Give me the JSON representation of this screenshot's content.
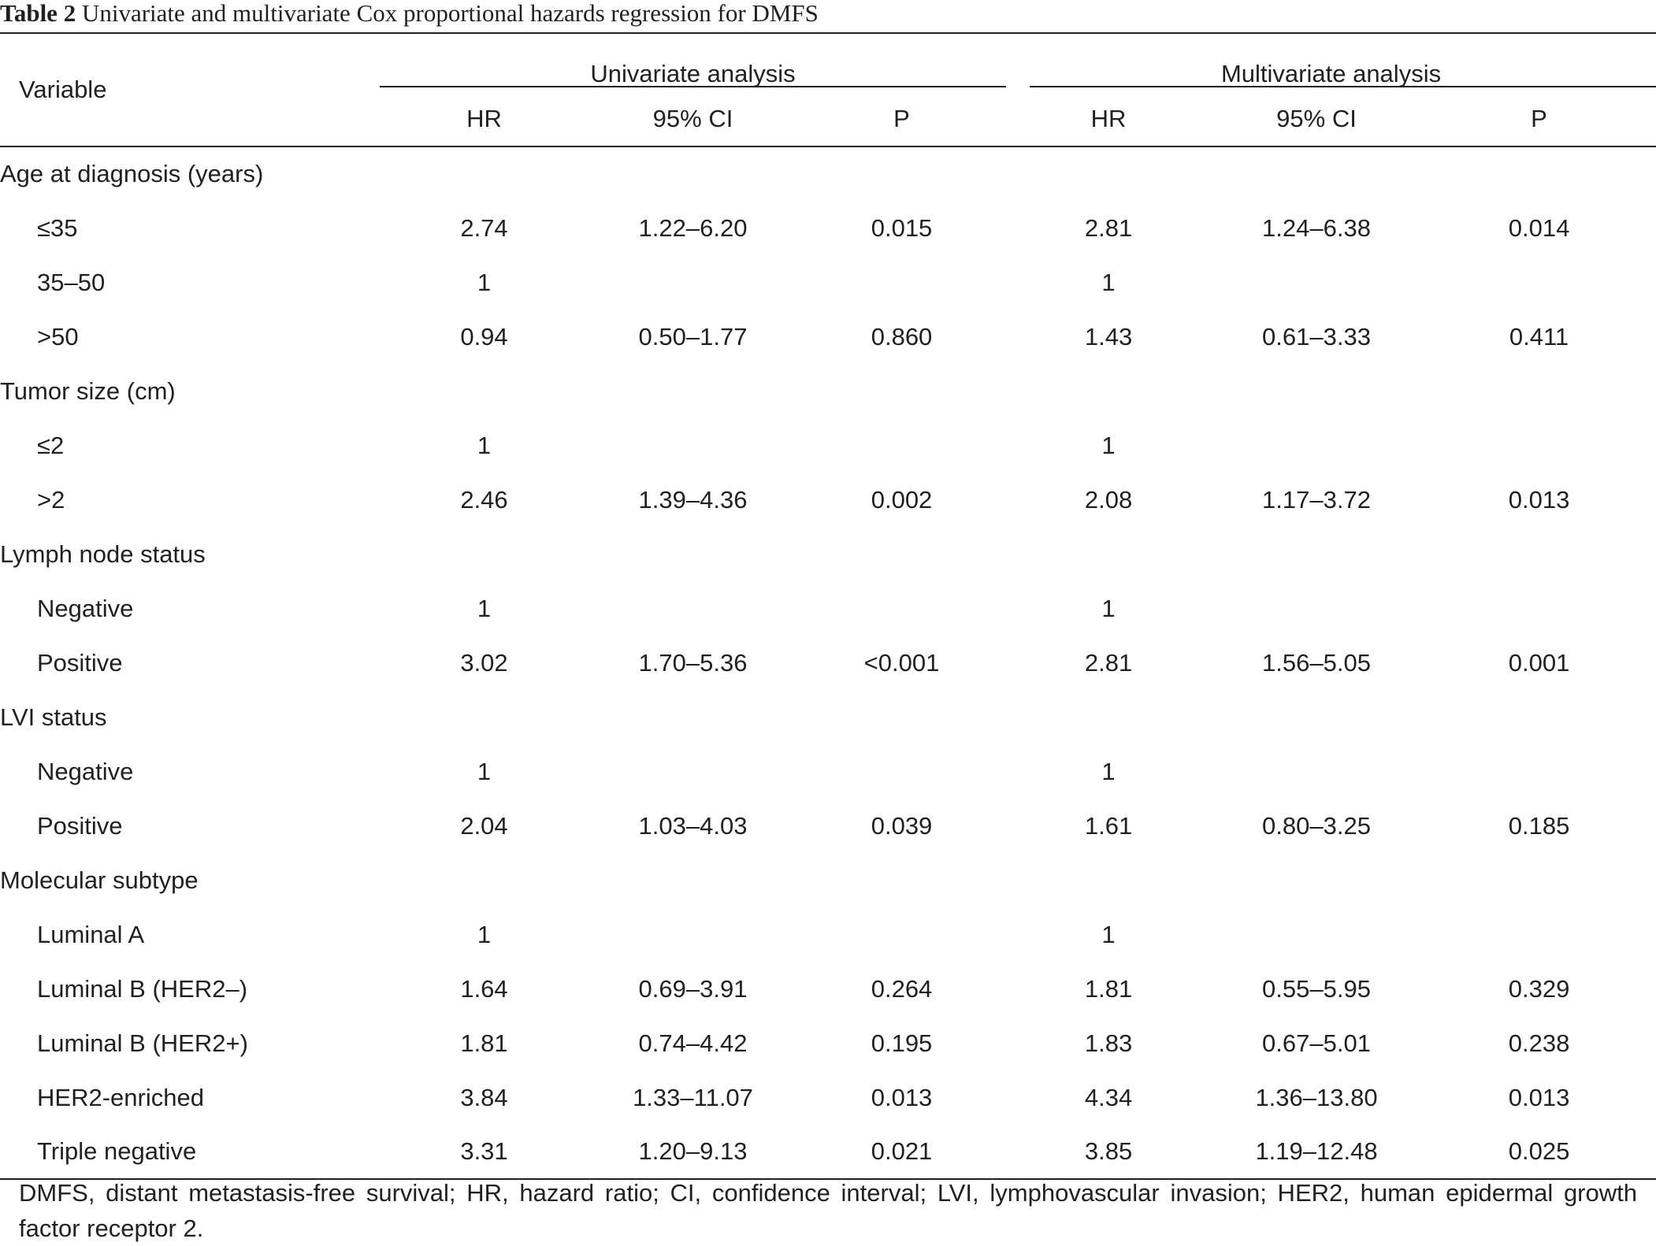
{
  "caption": {
    "label": "Table 2",
    "title": "Univariate and multivariate Cox proportional hazards regression for DMFS"
  },
  "header": {
    "variable": "Variable",
    "univariate": "Univariate analysis",
    "multivariate": "Multivariate analysis",
    "columns": [
      "HR",
      "95% CI",
      "P",
      "HR",
      "95% CI",
      "P"
    ]
  },
  "rows": [
    {
      "variable": "Age at diagnosis (years)",
      "level": 0,
      "cells": [
        "",
        "",
        "",
        "",
        "",
        ""
      ]
    },
    {
      "variable": "≤35",
      "level": 1,
      "cells": [
        "2.74",
        "1.22–6.20",
        "0.015",
        "2.81",
        "1.24–6.38",
        "0.014"
      ]
    },
    {
      "variable": "35–50",
      "level": 1,
      "cells": [
        "1",
        "",
        "",
        "1",
        "",
        ""
      ]
    },
    {
      "variable": ">50",
      "level": 1,
      "cells": [
        "0.94",
        "0.50–1.77",
        "0.860",
        "1.43",
        "0.61–3.33",
        "0.411"
      ]
    },
    {
      "variable": "Tumor size (cm)",
      "level": 0,
      "cells": [
        "",
        "",
        "",
        "",
        "",
        ""
      ]
    },
    {
      "variable": "≤2",
      "level": 1,
      "cells": [
        "1",
        "",
        "",
        "1",
        "",
        ""
      ]
    },
    {
      "variable": ">2",
      "level": 1,
      "cells": [
        "2.46",
        "1.39–4.36",
        "0.002",
        "2.08",
        "1.17–3.72",
        "0.013"
      ]
    },
    {
      "variable": "Lymph node status",
      "level": 0,
      "cells": [
        "",
        "",
        "",
        "",
        "",
        ""
      ]
    },
    {
      "variable": "Negative",
      "level": 1,
      "cells": [
        "1",
        "",
        "",
        "1",
        "",
        ""
      ]
    },
    {
      "variable": "Positive",
      "level": 1,
      "cells": [
        "3.02",
        "1.70–5.36",
        "<0.001",
        "2.81",
        "1.56–5.05",
        "0.001"
      ]
    },
    {
      "variable": "LVI status",
      "level": 0,
      "cells": [
        "",
        "",
        "",
        "",
        "",
        ""
      ]
    },
    {
      "variable": "Negative",
      "level": 1,
      "cells": [
        "1",
        "",
        "",
        "1",
        "",
        ""
      ]
    },
    {
      "variable": "Positive",
      "level": 1,
      "cells": [
        "2.04",
        "1.03–4.03",
        "0.039",
        "1.61",
        "0.80–3.25",
        "0.185"
      ]
    },
    {
      "variable": "Molecular subtype",
      "level": 0,
      "cells": [
        "",
        "",
        "",
        "",
        "",
        ""
      ]
    },
    {
      "variable": "Luminal A",
      "level": 1,
      "cells": [
        "1",
        "",
        "",
        "1",
        "",
        ""
      ]
    },
    {
      "variable": "Luminal B (HER2–)",
      "level": 1,
      "cells": [
        "1.64",
        "0.69–3.91",
        "0.264",
        "1.81",
        "0.55–5.95",
        "0.329"
      ]
    },
    {
      "variable": "Luminal B (HER2+)",
      "level": 1,
      "cells": [
        "1.81",
        "0.74–4.42",
        "0.195",
        "1.83",
        "0.67–5.01",
        "0.238"
      ]
    },
    {
      "variable": "HER2-enriched",
      "level": 1,
      "cells": [
        "3.84",
        "1.33–11.07",
        "0.013",
        "4.34",
        "1.36–13.80",
        "0.013"
      ]
    },
    {
      "variable": "Triple negative",
      "level": 1,
      "cells": [
        "3.31",
        "1.20–9.13",
        "0.021",
        "3.85",
        "1.19–12.48",
        "0.025"
      ]
    }
  ],
  "footnote": "DMFS, distant metastasis-free survival; HR, hazard ratio; CI, confidence interval; LVI, lymphovascular invasion; HER2, human epidermal growth factor receptor 2."
}
